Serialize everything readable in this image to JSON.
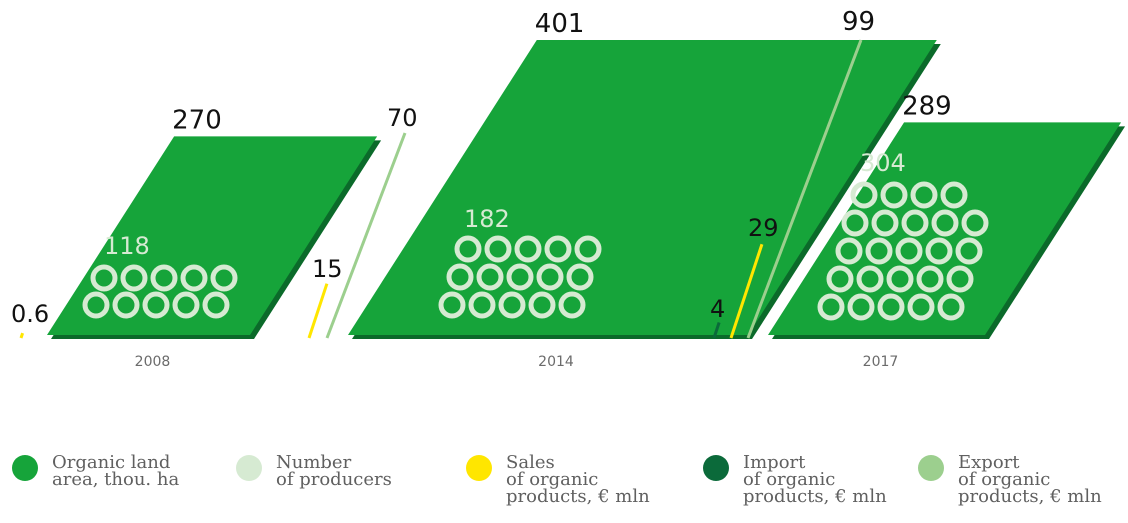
{
  "chart_data": {
    "type": "bar",
    "categories": [
      "2008",
      "2014",
      "2017"
    ],
    "series": [
      {
        "name": "Organic land area, thou. ha",
        "values": [
          270,
          401,
          289
        ]
      },
      {
        "name": "Number of producers",
        "values": [
          118,
          182,
          304
        ]
      },
      {
        "name": "Sales of organic products, € mln",
        "values": [
          0.6,
          15,
          29
        ]
      },
      {
        "name": "Import of organic products, € mln",
        "values": [
          null,
          null,
          4
        ]
      },
      {
        "name": "Export of organic products, € mln",
        "values": [
          null,
          70,
          99
        ]
      }
    ],
    "value_labels": {
      "land": [
        "270",
        "401",
        "289"
      ],
      "producers": [
        "118",
        "182",
        "304"
      ],
      "sales": [
        "0.6",
        "15",
        "29"
      ],
      "import": [
        "4"
      ],
      "export": [
        "70",
        "99"
      ]
    },
    "colors": {
      "land": "#16a43a",
      "land_shadow": "#0b6a2a",
      "producers": "#d6ead2",
      "sales": "#ffe600",
      "import": "#0b6a3a",
      "export": "#9ccf8e",
      "label": "#111111",
      "year": "#6b6b6b"
    }
  },
  "legend": [
    {
      "label": "Organic land\narea, thou. ha",
      "color": "#16a43a"
    },
    {
      "label": "Number\nof producers",
      "color": "#d6ead2"
    },
    {
      "label": "Sales\nof organic\nproducts, € mln",
      "color": "#ffe600"
    },
    {
      "label": "Import\nof organic\nproducts, € mln",
      "color": "#0b6a3a"
    },
    {
      "label": "Export\nof organic\nproducts, € mln",
      "color": "#9ccf8e"
    }
  ]
}
